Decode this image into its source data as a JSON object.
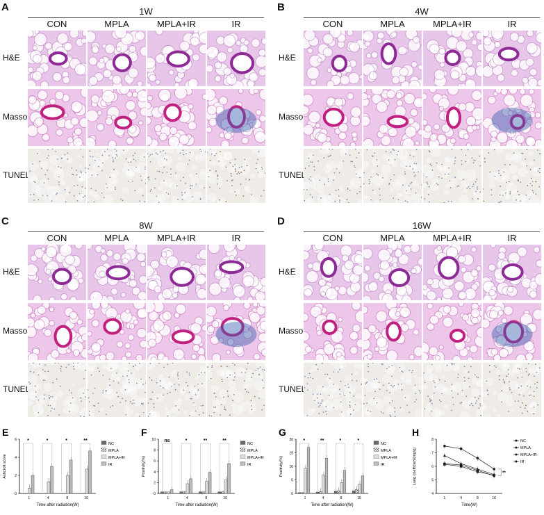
{
  "panels": [
    {
      "letter": "A",
      "title": "1W",
      "cols": [
        "CON",
        "MPLA",
        "MPLA+IR",
        "IR"
      ],
      "rows": [
        "H&E",
        "Masson",
        "TUNEL"
      ]
    },
    {
      "letter": "B",
      "title": "4W",
      "cols": [
        "CON",
        "MPLA",
        "MPLA+IR",
        "IR"
      ],
      "rows": [
        "H&E",
        "Masson",
        "TUNEL"
      ]
    },
    {
      "letter": "C",
      "title": "8W",
      "cols": [
        "CON",
        "MPLA",
        "MPLA+IR",
        "IR"
      ],
      "rows": [
        "H&E",
        "Masson",
        "TUNEL"
      ]
    },
    {
      "letter": "D",
      "title": "16W",
      "cols": [
        "CON",
        "MPLA",
        "MPLA+IR",
        "IR"
      ],
      "rows": [
        "H&E",
        "Masson",
        "TUNEL"
      ]
    }
  ],
  "chart_data": [
    {
      "letter": "E",
      "type": "bar",
      "categories": [
        "1",
        "4",
        "8",
        "16"
      ],
      "xlabel": "Time after radiation(W)",
      "ylabel": "Ashcroft score",
      "ylim": [
        0,
        6
      ],
      "yticks": [
        "0",
        "2",
        "4",
        "6"
      ],
      "series": [
        {
          "name": "NC",
          "values": [
            0,
            0,
            0,
            0
          ]
        },
        {
          "name": "MPLA",
          "values": [
            0,
            0,
            0,
            0
          ]
        },
        {
          "name": "MPLA+IR",
          "values": [
            0.6,
            1.3,
            2.0,
            2.7
          ]
        },
        {
          "name": "IR",
          "values": [
            2.0,
            3.0,
            3.7,
            4.7
          ]
        }
      ],
      "significance": [
        "*",
        "*",
        "*",
        "**"
      ]
    },
    {
      "letter": "F",
      "type": "bar",
      "categories": [
        "1",
        "4",
        "8",
        "16"
      ],
      "xlabel": "Time after radiation(W)",
      "ylabel": "Positivity(%)",
      "ylim": [
        0,
        10
      ],
      "yticks": [
        "0",
        "2",
        "4",
        "6",
        "8",
        "10"
      ],
      "series": [
        {
          "name": "NC",
          "values": [
            0.3,
            0.3,
            0.3,
            0.3
          ]
        },
        {
          "name": "MPLA",
          "values": [
            0.3,
            0.3,
            0.3,
            0.3
          ]
        },
        {
          "name": "MPLA+IR",
          "values": [
            0.3,
            1.8,
            2.2,
            2.5
          ]
        },
        {
          "name": "IR",
          "values": [
            0.7,
            2.7,
            3.9,
            5.5
          ]
        }
      ],
      "significance": [
        "ns",
        "*",
        "**",
        "**"
      ]
    },
    {
      "letter": "G",
      "type": "bar",
      "categories": [
        "1",
        "4",
        "8",
        "16"
      ],
      "xlabel": "Time after radiation(W)",
      "ylabel": "Positivity(%)",
      "ylim": [
        0,
        20
      ],
      "yticks": [
        "0",
        "5",
        "10",
        "15",
        "20"
      ],
      "series": [
        {
          "name": "NC",
          "values": [
            0.3,
            0.5,
            0.8,
            1.0
          ]
        },
        {
          "name": "MPLA",
          "values": [
            0.3,
            0.7,
            1.0,
            1.5
          ]
        },
        {
          "name": "MPLA+IR",
          "values": [
            9.3,
            6.8,
            4.0,
            3.5
          ]
        },
        {
          "name": "IR",
          "values": [
            17.0,
            13.0,
            8.5,
            6.5
          ]
        }
      ],
      "significance": [
        "*",
        "**",
        "*",
        "*"
      ]
    },
    {
      "letter": "H",
      "type": "line",
      "x": [
        "1",
        "4",
        "8",
        "16"
      ],
      "xlabel": "Time(W)",
      "ylabel": "Lung coefficient(mg/g)",
      "ylim": [
        4,
        8
      ],
      "yticks": [
        "4",
        "5",
        "6",
        "7",
        "8"
      ],
      "series": [
        {
          "name": "NC",
          "values": [
            6.2,
            6.1,
            5.7,
            5.3
          ]
        },
        {
          "name": "MPLA",
          "values": [
            6.15,
            6.0,
            5.6,
            5.35
          ]
        },
        {
          "name": "MPLA+IR",
          "values": [
            6.8,
            6.2,
            5.8,
            5.4
          ]
        },
        {
          "name": "IR",
          "values": [
            7.5,
            7.3,
            6.6,
            5.8
          ]
        }
      ],
      "significance": [
        "**"
      ]
    }
  ]
}
